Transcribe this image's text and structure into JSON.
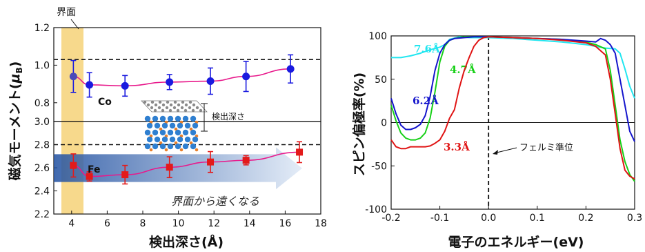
{
  "chart_data": [
    {
      "type": "scatter",
      "xlabel": "検出深さ(Å)",
      "ylabel": "磁気モーメント(μB)",
      "ylabel_symbol": "μ",
      "ylabel_sub": "B",
      "xlim": [
        3,
        18
      ],
      "xticks": [
        "4",
        "6",
        "8",
        "10",
        "12",
        "14",
        "16",
        "18"
      ],
      "xtick_values": [
        4,
        6,
        8,
        10,
        12,
        14,
        16,
        18
      ],
      "panels": [
        {
          "ylim": [
            0.7,
            1.2
          ],
          "yticks": [
            "0.8",
            "1.0",
            "1.2"
          ],
          "ytick_values": [
            0.8,
            1.0,
            1.2
          ],
          "reference_line": 1.03,
          "series": [
            {
              "name": "Co",
              "color": "#1a1adf",
              "line_color": "#e8198b",
              "marker": "circle",
              "x": [
                4.1,
                5.0,
                7.0,
                9.5,
                11.8,
                13.8,
                16.3
              ],
              "y": [
                0.94,
                0.895,
                0.89,
                0.91,
                0.915,
                0.94,
                0.98
              ],
              "err": [
                0.085,
                0.065,
                0.055,
                0.04,
                0.07,
                0.08,
                0.075
              ]
            }
          ]
        },
        {
          "ylim": [
            2.2,
            3.0
          ],
          "yticks": [
            "2.2",
            "2.4",
            "2.6",
            "2.8",
            "3.0"
          ],
          "ytick_values": [
            2.2,
            2.4,
            2.6,
            2.8,
            3.0
          ],
          "reference_line": 2.8,
          "series": [
            {
              "name": "Fe",
              "color": "#e31a1a",
              "line_color": "#e8198b",
              "marker": "square",
              "x": [
                4.1,
                5.0,
                7.0,
                9.5,
                11.8,
                13.8,
                16.8
              ],
              "y": [
                2.62,
                2.525,
                2.54,
                2.605,
                2.65,
                2.665,
                2.735
              ],
              "err": [
                0.1,
                0.04,
                0.08,
                0.09,
                0.09,
                0.04,
                0.09
              ]
            }
          ]
        }
      ],
      "annotations": {
        "interface": "界面",
        "depth": "検出深さ",
        "arrow_text": "界面から遠くなる"
      },
      "colors": {
        "highlight": "#f7d98c",
        "arrow_start": "#1f4fa0",
        "arrow_end": "#dfe9f6"
      }
    },
    {
      "type": "line",
      "xlabel": "電子のエネルギー(eV)",
      "ylabel": "スピン偏極率(%)",
      "xlim": [
        -0.2,
        0.3
      ],
      "ylim": [
        -100,
        100
      ],
      "xticks": [
        "-0.2",
        "-0.1",
        "0.0",
        "0.1",
        "0.2",
        "0.3"
      ],
      "xtick_values": [
        -0.2,
        -0.1,
        0.0,
        0.1,
        0.2,
        0.3
      ],
      "yticks": [
        "-100",
        "-50",
        "0",
        "50",
        "100"
      ],
      "ytick_values": [
        -100,
        -50,
        0,
        50,
        100
      ],
      "annotations": {
        "fermi": "フェルミ準位"
      },
      "series": [
        {
          "name": "7.6Å",
          "color": "#22e6f0",
          "x": [
            -0.2,
            -0.18,
            -0.16,
            -0.14,
            -0.12,
            -0.1,
            -0.09,
            -0.08,
            -0.06,
            -0.04,
            0.0,
            0.05,
            0.1,
            0.15,
            0.2,
            0.22,
            0.24,
            0.26,
            0.27,
            0.28,
            0.29,
            0.3
          ],
          "y": [
            75,
            75,
            77,
            80,
            84,
            87,
            90,
            96,
            99,
            98,
            98,
            97,
            95,
            93,
            90,
            88,
            86,
            85,
            80,
            62,
            42,
            28
          ]
        },
        {
          "name": "4.7Å",
          "color": "#18d018",
          "x": [
            -0.2,
            -0.19,
            -0.18,
            -0.17,
            -0.16,
            -0.15,
            -0.14,
            -0.13,
            -0.12,
            -0.11,
            -0.1,
            -0.09,
            -0.08,
            -0.07,
            -0.06,
            -0.05,
            -0.03,
            0.0,
            0.05,
            0.1,
            0.15,
            0.2,
            0.22,
            0.24,
            0.25,
            0.26,
            0.27,
            0.28,
            0.29,
            0.3
          ],
          "y": [
            20,
            2,
            -12,
            -18,
            -20,
            -20,
            -18,
            -12,
            5,
            35,
            70,
            88,
            95,
            97,
            98,
            99,
            99,
            99,
            98,
            97,
            96,
            93,
            90,
            85,
            60,
            20,
            -20,
            -45,
            -60,
            -68
          ]
        },
        {
          "name": "6.2Å",
          "color": "#1414cc",
          "x": [
            -0.2,
            -0.19,
            -0.18,
            -0.17,
            -0.16,
            -0.15,
            -0.14,
            -0.13,
            -0.12,
            -0.11,
            -0.1,
            -0.09,
            -0.08,
            -0.07,
            -0.05,
            -0.03,
            0.0,
            0.05,
            0.1,
            0.15,
            0.2,
            0.22,
            0.23,
            0.24,
            0.25,
            0.26,
            0.27,
            0.28,
            0.29,
            0.3
          ],
          "y": [
            28,
            10,
            -3,
            -8,
            -8,
            -6,
            -2,
            8,
            30,
            60,
            80,
            90,
            95,
            97,
            98,
            99,
            99,
            98,
            97,
            96,
            94,
            93,
            97,
            95,
            90,
            80,
            50,
            20,
            -10,
            -22
          ]
        },
        {
          "name": "3.3Å",
          "color": "#e01414",
          "x": [
            -0.2,
            -0.19,
            -0.18,
            -0.17,
            -0.16,
            -0.15,
            -0.14,
            -0.13,
            -0.12,
            -0.11,
            -0.1,
            -0.09,
            -0.08,
            -0.07,
            -0.06,
            -0.05,
            -0.04,
            -0.03,
            -0.02,
            -0.01,
            0.0,
            0.05,
            0.1,
            0.15,
            0.2,
            0.22,
            0.24,
            0.25,
            0.26,
            0.27,
            0.28,
            0.29,
            0.3
          ],
          "y": [
            -20,
            -28,
            -30,
            -30,
            -28,
            -28,
            -28,
            -28,
            -27,
            -24,
            -20,
            -10,
            5,
            15,
            40,
            60,
            75,
            88,
            95,
            98,
            99,
            98,
            97,
            95,
            92,
            88,
            78,
            50,
            10,
            -30,
            -55,
            -62,
            -65
          ]
        }
      ]
    }
  ]
}
